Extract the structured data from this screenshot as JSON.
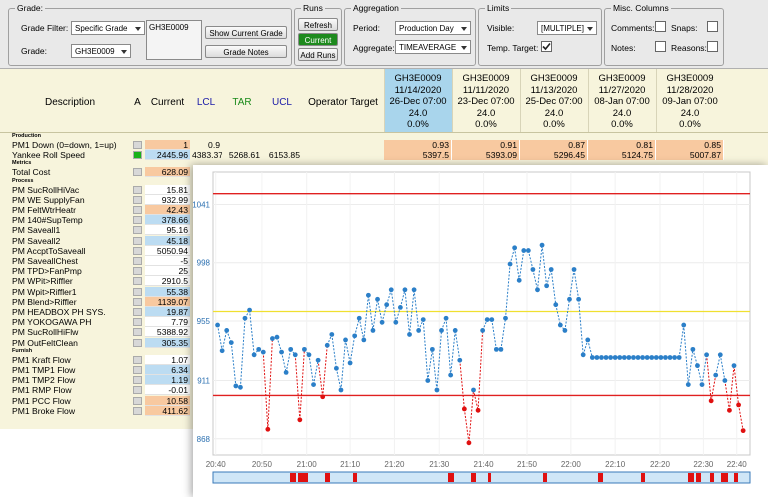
{
  "toolbar": {
    "grade": {
      "legend": "Grade:",
      "filter_label": "Grade Filter:",
      "filter_value": "Specific Grade",
      "grade_label": "Grade:",
      "grade_value": "GH3E0009",
      "grade_box": "GH3E0009",
      "show_button": "Show Current Grade",
      "notes_button": "Grade Notes"
    },
    "runs": {
      "legend": "Runs",
      "refresh": "Refresh",
      "current": "Current",
      "add": "Add Runs"
    },
    "aggregation": {
      "legend": "Aggregation",
      "period_label": "Period:",
      "period_value": "Production Day",
      "aggregate_label": "Aggregate:",
      "aggregate_value": "TIMEAVERAGE"
    },
    "limits": {
      "legend": "Limits",
      "visible_label": "Visible:",
      "visible_value": "[MULTIPLE]",
      "temp_target_label": "Temp. Target:",
      "temp_target_checked": true
    },
    "misc": {
      "legend": "Misc. Columns",
      "comments": "Comments:",
      "snaps": "Snaps:",
      "notes": "Notes:",
      "reasons": "Reasons:"
    }
  },
  "table": {
    "columns": [
      "Description",
      "A",
      "Current",
      "LCL",
      "TAR",
      "UCL",
      "Operator Target"
    ],
    "runs": [
      {
        "grade": "GH3E0009",
        "date": "11/14/2020",
        "time": "26-Dec 07:00",
        "hours": "24.0",
        "pct": "0.0%"
      },
      {
        "grade": "GH3E0009",
        "date": "11/11/2020",
        "time": "23-Dec 07:00",
        "hours": "24.0",
        "pct": "0.0%"
      },
      {
        "grade": "GH3E0009",
        "date": "11/13/2020",
        "time": "25-Dec 07:00",
        "hours": "24.0",
        "pct": "0.0%"
      },
      {
        "grade": "GH3E0009",
        "date": "11/27/2020",
        "time": "08-Jan 07:00",
        "hours": "24.0",
        "pct": "0.0%"
      },
      {
        "grade": "GH3E0009",
        "date": "11/28/2020",
        "time": "09-Jan 07:00",
        "hours": "24.0",
        "pct": "0.0%"
      }
    ],
    "sections": [
      {
        "name": "Production",
        "rows": [
          {
            "name": "PM1 Down (0=down, 1=up)",
            "current": 1,
            "color": "#f8c9a0",
            "lcl": 0.9,
            "runs": [
              0.93,
              0.91,
              0.87,
              0.81,
              0.85
            ]
          },
          {
            "name": "Yankee Roll Speed",
            "current": 2445.96,
            "color": "#bcdcf2",
            "indicator": "#19b219",
            "lcl": 4383.37,
            "tar": 5268.61,
            "ucl": 6153.85,
            "runs": [
              5397.5,
              5393.09,
              5296.45,
              5124.75,
              5007.87
            ]
          }
        ]
      },
      {
        "name": "Metrics",
        "rows": [
          {
            "name": "Total Cost",
            "current": 628.09,
            "color": "#f8c9a0"
          }
        ]
      },
      {
        "name": "Process",
        "rows": [
          {
            "name": "PM SucRollHiVac",
            "current": 15.81,
            "color": "#ffffff"
          },
          {
            "name": "PM WE SupplyFan",
            "current": 932.99,
            "color": "#ffffff"
          },
          {
            "name": "PM FeltWtrHeatr",
            "current": 42.43,
            "color": "#f8c9a0"
          },
          {
            "name": "PM 140#SupTemp",
            "current": 378.66,
            "color": "#bcdcf2"
          },
          {
            "name": "PM Saveall1",
            "current": 95.16,
            "color": "#ffffff"
          },
          {
            "name": "PM Saveall2",
            "current": 45.18,
            "color": "#bcdcf2"
          },
          {
            "name": "PM AccptToSaveall",
            "current": 5050.94,
            "color": "#ffffff"
          },
          {
            "name": "PM SaveallChest",
            "current": -5,
            "color": "#ffffff"
          },
          {
            "name": "PM TPD>FanPmp",
            "current": 25,
            "color": "#ffffff"
          },
          {
            "name": "PM WPit>Riffler",
            "current": 2910.5,
            "color": "#ffffff"
          },
          {
            "name": "PM Wpit>Riffler1",
            "current": 55.38,
            "color": "#bcdcf2"
          },
          {
            "name": "PM Blend>Riffler",
            "current": 1139.07,
            "color": "#f8c9a0"
          },
          {
            "name": "PM HEADBOX PH SYS.",
            "current": 19.87,
            "color": "#bcdcf2"
          },
          {
            "name": "PM YOKOGAWA PH",
            "current": 7.79,
            "color": "#ffffff"
          },
          {
            "name": "PM SucRollHiFlw",
            "current": 5388.92,
            "color": "#ffffff"
          },
          {
            "name": "PM OutFeltClean",
            "current": 305.35,
            "color": "#bcdcf2"
          }
        ]
      },
      {
        "name": "Furnish",
        "rows": [
          {
            "name": "PM1 Kraft Flow",
            "current": 1.07,
            "color": "#ffffff"
          },
          {
            "name": "PM1 TMP1 Flow",
            "current": 6.34,
            "color": "#bcdcf2"
          },
          {
            "name": "PM1 TMP2 Flow",
            "current": 1.19,
            "color": "#bcdcf2"
          },
          {
            "name": "PM1 RMP Flow",
            "current": -0.01,
            "color": "#ffffff"
          },
          {
            "name": "PM1 PCC Flow",
            "current": 10.58,
            "color": "#f8c9a0"
          },
          {
            "name": "PM1 Broke Flow",
            "current": 411.62,
            "color": "#f8c9a0"
          }
        ]
      }
    ],
    "run_color": "#f8c9a0"
  },
  "chart": {
    "type": "line",
    "color": "#2b7fc8",
    "alarm_color": "#e01010",
    "values": [
      952,
      933,
      948,
      939,
      907,
      906,
      957,
      963,
      930,
      934,
      932,
      875,
      942,
      943,
      932,
      917,
      934,
      930,
      882,
      934,
      930,
      908,
      926,
      899,
      937,
      945,
      920,
      904,
      941,
      924,
      944,
      957,
      941,
      974,
      948,
      971,
      954,
      967,
      978,
      954,
      965,
      978,
      945,
      978,
      948,
      956,
      911,
      934,
      904,
      948,
      957,
      915,
      948,
      926,
      890,
      865,
      904,
      889,
      948,
      956,
      956,
      934,
      934,
      957,
      997,
      1009,
      985,
      1007,
      1007,
      993,
      978,
      1011,
      981,
      993,
      967,
      952,
      948,
      971,
      993,
      971,
      930,
      941,
      928,
      928,
      928,
      928,
      928,
      928,
      928,
      928,
      928,
      928,
      928,
      928,
      928,
      928,
      928,
      928,
      928,
      928,
      928,
      928,
      952,
      908,
      934,
      922,
      908,
      930,
      896,
      915,
      930,
      911,
      889,
      922,
      893,
      874
    ],
    "xlim": [
      -1,
      116.5
    ],
    "xticks": [
      {
        "value": -0.4,
        "label": "20:40"
      },
      {
        "value": 9.7,
        "label": "20:50"
      },
      {
        "value": 19.5,
        "label": "21:00"
      },
      {
        "value": 29,
        "label": "21:10"
      },
      {
        "value": 38.7,
        "label": "21:20"
      },
      {
        "value": 48.5,
        "label": "21:30"
      },
      {
        "value": 58.2,
        "label": "21:40"
      },
      {
        "value": 67.7,
        "label": "21:50"
      },
      {
        "value": 77.3,
        "label": "22:00"
      },
      {
        "value": 87,
        "label": "22:10"
      },
      {
        "value": 96.8,
        "label": "22:20"
      },
      {
        "value": 106.3,
        "label": "22:30"
      },
      {
        "value": 113.6,
        "label": "22:40"
      }
    ],
    "ylim": [
      856,
      1065
    ],
    "yticks": [
      868,
      911,
      955,
      998,
      1041
    ],
    "grid": true,
    "limits": [
      {
        "value": 1049,
        "color": "#e02020"
      },
      {
        "value": 900,
        "color": "#e02020"
      },
      {
        "value": 962,
        "color": "#f0e030"
      }
    ]
  }
}
